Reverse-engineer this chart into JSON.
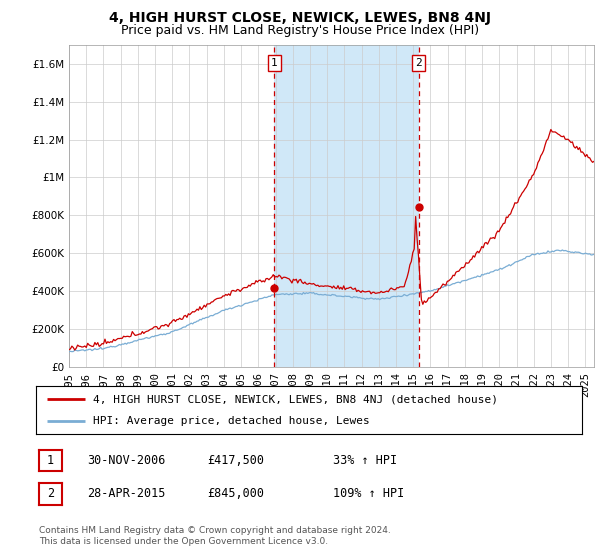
{
  "title": "4, HIGH HURST CLOSE, NEWICK, LEWES, BN8 4NJ",
  "subtitle": "Price paid vs. HM Land Registry's House Price Index (HPI)",
  "ylabel_ticks": [
    "£0",
    "£200K",
    "£400K",
    "£600K",
    "£800K",
    "£1M",
    "£1.2M",
    "£1.4M",
    "£1.6M"
  ],
  "ytick_values": [
    0,
    200000,
    400000,
    600000,
    800000,
    1000000,
    1200000,
    1400000,
    1600000
  ],
  "ylim": [
    0,
    1700000
  ],
  "xlim_start": 1995.0,
  "xlim_end": 2025.5,
  "sale1_x": 2006.92,
  "sale1_y": 417500,
  "sale2_x": 2015.33,
  "sale2_y": 845000,
  "vline1_x": 2006.92,
  "vline2_x": 2015.33,
  "hpi_color": "#7aadd4",
  "price_color": "#cc0000",
  "vline_color": "#cc0000",
  "shade_color": "#d0e8f8",
  "grid_color": "#cccccc",
  "bg_color": "#ffffff",
  "legend_entry1": "4, HIGH HURST CLOSE, NEWICK, LEWES, BN8 4NJ (detached house)",
  "legend_entry2": "HPI: Average price, detached house, Lewes",
  "table_row1": [
    "1",
    "30-NOV-2006",
    "£417,500",
    "33% ↑ HPI"
  ],
  "table_row2": [
    "2",
    "28-APR-2015",
    "£845,000",
    "109% ↑ HPI"
  ],
  "footnote": "Contains HM Land Registry data © Crown copyright and database right 2024.\nThis data is licensed under the Open Government Licence v3.0.",
  "title_fontsize": 10,
  "subtitle_fontsize": 9,
  "tick_fontsize": 7.5,
  "legend_fontsize": 8,
  "table_fontsize": 8.5,
  "footnote_fontsize": 6.5
}
